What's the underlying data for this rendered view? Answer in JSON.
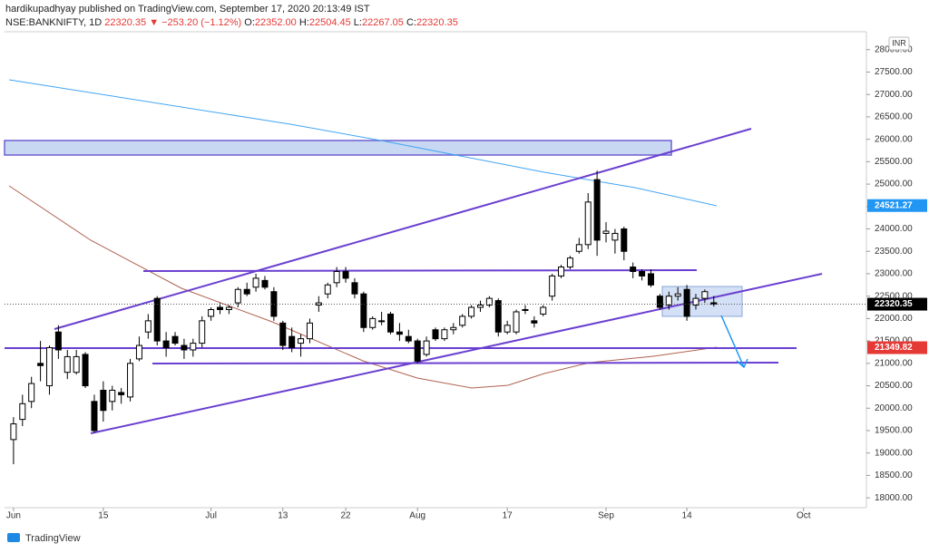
{
  "header": {
    "publisher": "hardikupadhyay published on TradingView.com, September 17, 2020 20:13:49 IST",
    "symbol": "NSE:BANKNIFTY, 1D",
    "last": "22320.35",
    "change": "▼ −253.20 (−1.12%)",
    "o_label": "O:",
    "o": "22352.00",
    "h_label": "H:",
    "h": "22504.45",
    "l_label": "L:",
    "l": "22267.05",
    "c_label": "C:",
    "c": "22320.35"
  },
  "currency": "INR",
  "footer": "TradingView",
  "chart_data": {
    "type": "candlestick",
    "up_color": "#ffffff",
    "down_color": "#000000",
    "x": [
      0,
      1,
      2,
      3,
      4,
      5,
      6,
      7,
      8,
      9,
      10,
      11,
      12,
      13,
      14,
      15,
      16,
      17,
      18,
      19,
      20,
      21,
      22,
      23,
      24,
      25,
      26,
      27,
      28,
      29,
      30,
      31,
      32,
      33,
      34,
      35,
      36,
      37,
      38,
      39,
      40,
      41,
      42,
      43,
      44,
      45,
      46,
      47,
      48,
      49,
      50,
      51,
      52,
      53,
      54,
      55,
      56,
      57,
      58,
      59,
      60,
      61,
      62,
      63,
      64,
      65,
      66,
      67,
      68,
      69,
      70,
      71,
      72,
      73,
      74,
      75,
      76,
      77,
      78
    ],
    "open": [
      19300,
      19750,
      20150,
      21000,
      20500,
      21700,
      20800,
      20800,
      21200,
      20150,
      20400,
      20150,
      20350,
      20250,
      21100,
      21700,
      22450,
      21500,
      21600,
      21400,
      21300,
      21450,
      22050,
      22250,
      22200,
      22350,
      22650,
      22700,
      22850,
      22600,
      21900,
      21600,
      21450,
      21550,
      22300,
      22550,
      22800,
      23050,
      22800,
      22550,
      21800,
      21950,
      22100,
      21700,
      21600,
      21500,
      21200,
      21750,
      21550,
      21750,
      21850,
      22050,
      22250,
      22300,
      22400,
      21700,
      21700,
      22200,
      21950,
      22100,
      22500,
      22950,
      23150,
      23500,
      23650,
      25100,
      23900,
      23750,
      24000,
      23150,
      23050,
      23000,
      22500,
      22300,
      22500,
      22650,
      22300,
      22450,
      22352
    ],
    "high": [
      19800,
      20300,
      20700,
      21500,
      21400,
      21850,
      21300,
      21300,
      21250,
      20300,
      20600,
      20500,
      20450,
      21100,
      21600,
      22100,
      22500,
      21700,
      21700,
      21550,
      21550,
      22050,
      22250,
      22350,
      22300,
      22700,
      22800,
      23000,
      22950,
      22700,
      21950,
      21800,
      21650,
      22000,
      22500,
      22800,
      23150,
      23150,
      22900,
      22600,
      22050,
      22150,
      22150,
      21900,
      21750,
      21550,
      21600,
      21800,
      21800,
      21900,
      22100,
      22300,
      22400,
      22500,
      22450,
      21950,
      22200,
      22300,
      22050,
      22300,
      23000,
      23200,
      23400,
      23800,
      24800,
      25300,
      24150,
      24000,
      24050,
      23250,
      23100,
      23100,
      22550,
      22600,
      22700,
      22750,
      22550,
      22650,
      22504.45
    ],
    "low": [
      18750,
      19600,
      20000,
      20600,
      20300,
      21100,
      20650,
      20750,
      20450,
      19450,
      19700,
      19950,
      20100,
      20150,
      21050,
      21550,
      21400,
      21150,
      21400,
      21100,
      21150,
      21350,
      21950,
      22100,
      22100,
      22250,
      22500,
      22600,
      22650,
      21950,
      21300,
      21250,
      21150,
      21450,
      22150,
      22450,
      22700,
      22800,
      22450,
      21700,
      21750,
      21850,
      21650,
      21500,
      21450,
      21000,
      21150,
      21500,
      21500,
      21650,
      21800,
      22000,
      22150,
      22250,
      21600,
      21650,
      21650,
      22100,
      21800,
      22050,
      22400,
      22900,
      23100,
      23450,
      23550,
      23400,
      23700,
      23450,
      23300,
      22900,
      22850,
      22700,
      22200,
      22200,
      22400,
      21950,
      22200,
      22350,
      22267.05
    ],
    "close": [
      19650,
      20100,
      20550,
      20950,
      21350,
      21300,
      21150,
      21150,
      20500,
      19500,
      19950,
      20400,
      20300,
      21000,
      21400,
      21950,
      21500,
      21350,
      21450,
      21300,
      21450,
      21950,
      22200,
      22200,
      22250,
      22650,
      22550,
      22900,
      22700,
      22050,
      21400,
      21350,
      21550,
      21900,
      22350,
      22750,
      23050,
      22900,
      22550,
      21800,
      22000,
      21950,
      21700,
      21650,
      21500,
      21050,
      21500,
      21550,
      21750,
      21800,
      22050,
      22250,
      22300,
      22450,
      21700,
      21850,
      22150,
      22200,
      21900,
      22250,
      22950,
      23150,
      23350,
      23650,
      24600,
      23750,
      23950,
      23900,
      23500,
      23050,
      22950,
      22750,
      22250,
      22500,
      22550,
      22050,
      22450,
      22600,
      22320.35
    ],
    "xlim": [
      -1,
      95
    ],
    "xticks": [
      {
        "value": 0,
        "label": "Jun"
      },
      {
        "value": 10,
        "label": "15"
      },
      {
        "value": 22,
        "label": "Jul"
      },
      {
        "value": 30,
        "label": "13"
      },
      {
        "value": 37,
        "label": "22"
      },
      {
        "value": 45,
        "label": "Aug"
      },
      {
        "value": 55,
        "label": "17"
      },
      {
        "value": 66,
        "label": "Sep"
      },
      {
        "value": 75,
        "label": "14"
      },
      {
        "value": 88,
        "label": "Oct"
      }
    ],
    "ylim": [
      17780,
      28400
    ],
    "yticks": [
      {
        "value": 18000,
        "label": "18000.00"
      },
      {
        "value": 18500,
        "label": "18500.00"
      },
      {
        "value": 19000,
        "label": "19000.00"
      },
      {
        "value": 19500,
        "label": "19500.00"
      },
      {
        "value": 20000,
        "label": "20000.00"
      },
      {
        "value": 20500,
        "label": "20500.00"
      },
      {
        "value": 21000,
        "label": "21000.00"
      },
      {
        "value": 21500,
        "label": "21500.00"
      },
      {
        "value": 22000,
        "label": "22000.00"
      },
      {
        "value": 22500,
        "label": "22500.00"
      },
      {
        "value": 23000,
        "label": "23000.00"
      },
      {
        "value": 23500,
        "label": "23500.00"
      },
      {
        "value": 24000,
        "label": "24000.00"
      },
      {
        "value": 24500,
        "label": "24500.00"
      },
      {
        "value": 25000,
        "label": "25000.00"
      },
      {
        "value": 25500,
        "label": "25500.00"
      },
      {
        "value": 26000,
        "label": "26000.00"
      },
      {
        "value": 26500,
        "label": "26500.00"
      },
      {
        "value": 27000,
        "label": "27000.00"
      },
      {
        "value": 27500,
        "label": "27500.00"
      },
      {
        "value": 28000,
        "label": "28000.00"
      }
    ],
    "grid": false,
    "markers": [
      {
        "value": 24521.27,
        "color": "#2196f3"
      },
      {
        "value": 22320.35,
        "color": "#000000"
      },
      {
        "value": 21349.82,
        "color": "#e53935"
      }
    ]
  }
}
